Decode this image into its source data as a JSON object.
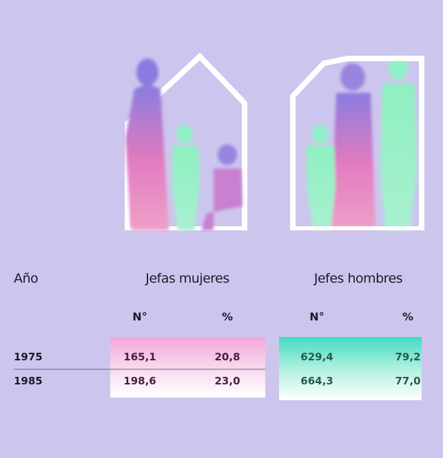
{
  "table": {
    "headers": [
      "Año",
      "Jefas mujeres",
      "Jefes hombres"
    ],
    "subheaders": [
      "N°",
      "%",
      "N°",
      "%"
    ],
    "rows": [
      [
        "1975",
        "165,1",
        "20,8",
        "629,4",
        "79,2"
      ],
      [
        "1985",
        "198,6",
        "23,0",
        "664,3",
        "77,0"
      ]
    ]
  }
}
